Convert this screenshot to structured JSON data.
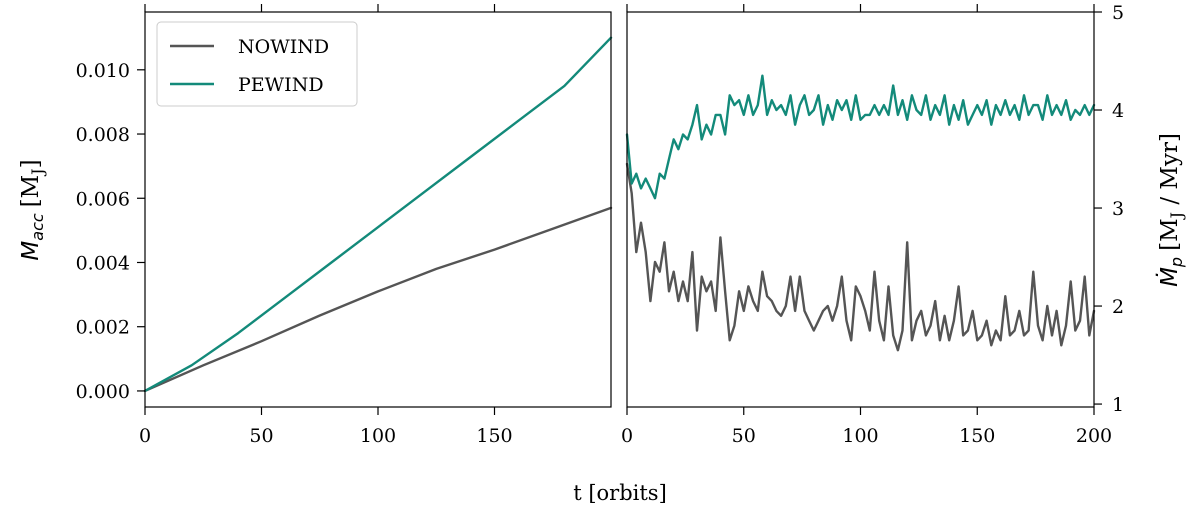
{
  "figure": {
    "xlabel": "t [orbits]"
  },
  "chart_data": [
    {
      "type": "line",
      "panel": "left",
      "ylabel": "M_acc [M_J]",
      "ylabel_parts": {
        "main": "M",
        "sub": "acc",
        "unit": "[M",
        "unit_sub": "J",
        "unit_end": "]"
      },
      "xlim": [
        0,
        200
      ],
      "ylim": [
        -0.0005,
        0.0118
      ],
      "xticks": [
        0,
        50,
        100,
        150
      ],
      "xtick_labels": [
        "0",
        "50",
        "100",
        "150"
      ],
      "yticks": [
        0.0,
        0.002,
        0.004,
        0.006,
        0.008,
        0.01
      ],
      "ytick_labels": [
        "0.000",
        "0.002",
        "0.004",
        "0.006",
        "0.008",
        "0.010"
      ],
      "grid": false,
      "legend": "top-left",
      "series": [
        {
          "name": "NOWIND",
          "color": "#555555",
          "x": [
            0,
            25,
            50,
            75,
            100,
            125,
            150,
            175,
            200
          ],
          "y": [
            0.0,
            0.0008,
            0.00155,
            0.00235,
            0.0031,
            0.0038,
            0.0044,
            0.00505,
            0.0057
          ]
        },
        {
          "name": "PEWIND",
          "color": "#138a7a",
          "x": [
            0,
            20,
            40,
            60,
            80,
            100,
            120,
            140,
            160,
            180,
            200
          ],
          "y": [
            0.0,
            0.0008,
            0.0018,
            0.0029,
            0.004,
            0.0051,
            0.0062,
            0.0073,
            0.0084,
            0.0095,
            0.011
          ]
        }
      ]
    },
    {
      "type": "line",
      "panel": "right",
      "ylabel": "Ṁ_p [M_J / Myr]",
      "ylabel_parts": {
        "main": "Ṁ",
        "sub": "p",
        "unit": "[M",
        "unit_sub": "J",
        "unit_end": " / Myr]"
      },
      "xlim": [
        0,
        200
      ],
      "ylim": [
        0.97,
        5.0
      ],
      "xticks": [
        0,
        50,
        100,
        150,
        200
      ],
      "xtick_labels": [
        "0",
        "50",
        "100",
        "150",
        "200"
      ],
      "yticks": [
        1,
        2,
        3,
        4,
        5
      ],
      "ytick_labels": [
        "1",
        "2",
        "3",
        "4",
        "5"
      ],
      "grid": false,
      "yaxis_side": "right",
      "series": [
        {
          "name": "NOWIND",
          "color": "#555555",
          "x": [
            0,
            2,
            4,
            6,
            8,
            10,
            12,
            14,
            16,
            18,
            20,
            22,
            24,
            26,
            28,
            30,
            32,
            34,
            36,
            38,
            40,
            42,
            44,
            46,
            48,
            50,
            52,
            54,
            56,
            58,
            60,
            62,
            64,
            66,
            68,
            70,
            72,
            74,
            76,
            78,
            80,
            82,
            84,
            86,
            88,
            90,
            92,
            94,
            96,
            98,
            100,
            102,
            104,
            106,
            108,
            110,
            112,
            114,
            116,
            118,
            120,
            122,
            124,
            126,
            128,
            130,
            132,
            134,
            136,
            138,
            140,
            142,
            144,
            146,
            148,
            150,
            152,
            154,
            156,
            158,
            160,
            162,
            164,
            166,
            168,
            170,
            172,
            174,
            176,
            178,
            180,
            182,
            184,
            186,
            188,
            190,
            192,
            194,
            196,
            198,
            200
          ],
          "y": [
            3.45,
            3.15,
            2.55,
            2.85,
            2.55,
            2.05,
            2.45,
            2.35,
            2.65,
            2.15,
            2.35,
            2.05,
            2.25,
            2.05,
            2.55,
            1.75,
            2.3,
            2.15,
            2.25,
            1.95,
            2.7,
            2.15,
            1.65,
            1.8,
            2.15,
            1.95,
            2.2,
            2.05,
            1.95,
            2.35,
            2.1,
            2.05,
            1.95,
            1.9,
            2.0,
            2.3,
            1.95,
            2.3,
            1.95,
            1.85,
            1.75,
            1.85,
            1.95,
            2.0,
            1.85,
            2.0,
            2.3,
            1.85,
            1.65,
            2.2,
            2.1,
            1.95,
            1.75,
            2.35,
            1.85,
            1.65,
            2.2,
            1.7,
            1.55,
            1.75,
            2.65,
            1.65,
            1.85,
            1.95,
            1.7,
            1.8,
            2.05,
            1.65,
            1.9,
            1.65,
            1.85,
            2.2,
            1.7,
            1.75,
            1.95,
            1.65,
            1.7,
            1.85,
            1.6,
            1.75,
            1.65,
            2.1,
            1.7,
            1.75,
            1.95,
            1.7,
            1.75,
            2.35,
            1.8,
            1.65,
            2.0,
            1.7,
            1.95,
            1.6,
            1.8,
            2.25,
            1.75,
            1.85,
            2.3,
            1.7,
            1.95
          ]
        },
        {
          "name": "PEWIND",
          "color": "#138a7a",
          "x": [
            0,
            2,
            4,
            6,
            8,
            10,
            12,
            14,
            16,
            18,
            20,
            22,
            24,
            26,
            28,
            30,
            32,
            34,
            36,
            38,
            40,
            42,
            44,
            46,
            48,
            50,
            52,
            54,
            56,
            58,
            60,
            62,
            64,
            66,
            68,
            70,
            72,
            74,
            76,
            78,
            80,
            82,
            84,
            86,
            88,
            90,
            92,
            94,
            96,
            98,
            100,
            102,
            104,
            106,
            108,
            110,
            112,
            114,
            116,
            118,
            120,
            122,
            124,
            126,
            128,
            130,
            132,
            134,
            136,
            138,
            140,
            142,
            144,
            146,
            148,
            150,
            152,
            154,
            156,
            158,
            160,
            162,
            164,
            166,
            168,
            170,
            172,
            174,
            176,
            178,
            180,
            182,
            184,
            186,
            188,
            190,
            192,
            194,
            196,
            198,
            200
          ],
          "y": [
            3.75,
            3.25,
            3.35,
            3.2,
            3.3,
            3.2,
            3.1,
            3.35,
            3.3,
            3.5,
            3.7,
            3.6,
            3.75,
            3.7,
            3.85,
            4.05,
            3.7,
            3.85,
            3.75,
            3.95,
            3.95,
            3.75,
            4.15,
            4.05,
            4.1,
            3.95,
            4.15,
            3.95,
            4.05,
            4.35,
            3.95,
            4.1,
            4.0,
            4.05,
            3.95,
            4.15,
            3.85,
            4.05,
            4.15,
            3.95,
            4.0,
            4.15,
            3.85,
            4.05,
            3.9,
            4.1,
            4.0,
            4.1,
            3.9,
            4.15,
            3.9,
            3.95,
            3.95,
            4.05,
            3.95,
            4.05,
            3.95,
            4.25,
            3.95,
            4.1,
            3.9,
            4.15,
            4.0,
            3.95,
            4.15,
            3.9,
            4.05,
            3.95,
            4.15,
            3.85,
            4.05,
            3.9,
            4.1,
            3.85,
            3.95,
            4.05,
            3.95,
            4.1,
            3.85,
            4.05,
            3.95,
            4.1,
            3.95,
            4.05,
            3.9,
            4.15,
            3.95,
            4.05,
            4.05,
            3.9,
            4.15,
            3.95,
            4.05,
            3.95,
            4.1,
            3.9,
            4.0,
            3.95,
            4.05,
            3.95,
            4.05
          ]
        }
      ]
    }
  ]
}
